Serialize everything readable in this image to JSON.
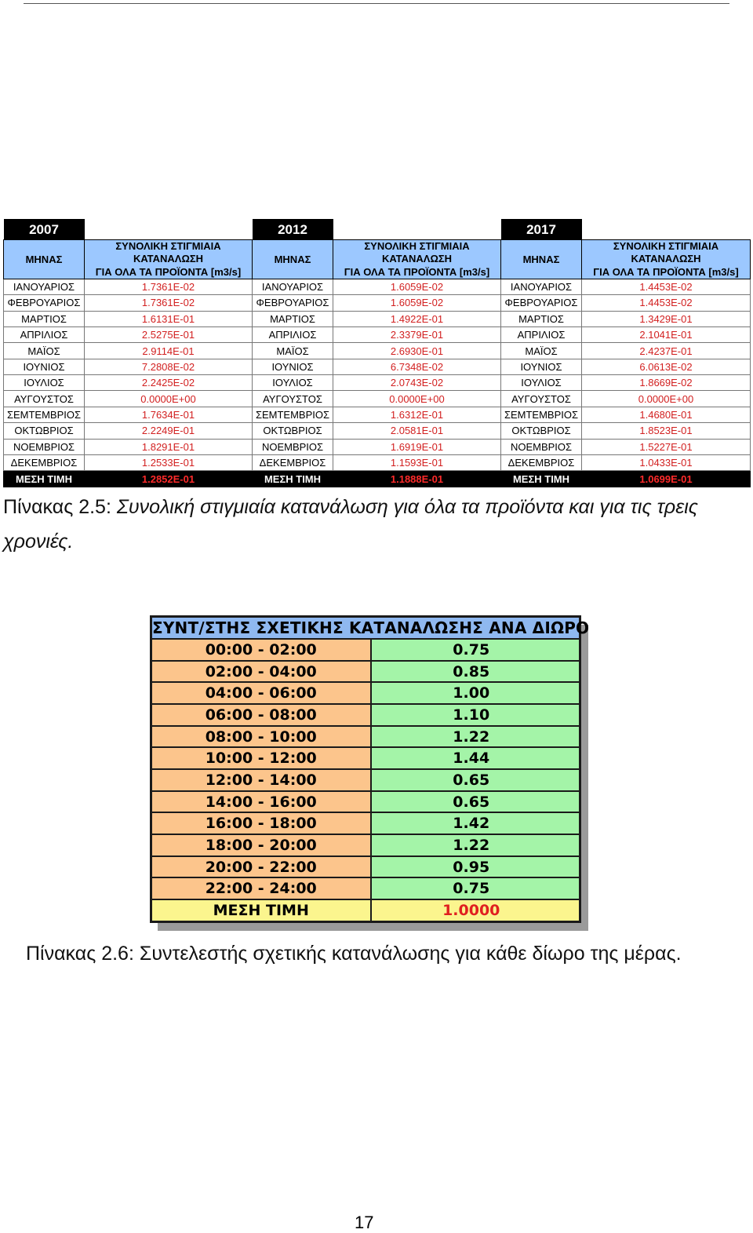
{
  "table25": {
    "years": [
      "2007",
      "2012",
      "2017"
    ],
    "month_header": "ΜΗΝΑΣ",
    "value_header_line1": "ΣΥΝΟΛΙΚΗ ΣΤΙΓΜΙΑΙΑ ΚΑΤΑΝΑΛΩΣΗ",
    "value_header_line2": "ΓΙΑ ΟΛΑ ΤΑ ΠΡΟΪΟΝΤΑ [m3/s]",
    "rows": [
      {
        "month": "ΙΑΝΟΥΑΡΙΟΣ",
        "v2007": "1.7361E-02",
        "v2012": "1.6059E-02",
        "v2017": "1.4453E-02"
      },
      {
        "month": "ΦΕΒΡΟΥΑΡΙΟΣ",
        "v2007": "1.7361E-02",
        "v2012": "1.6059E-02",
        "v2017": "1.4453E-02"
      },
      {
        "month": "ΜΑΡΤΙΟΣ",
        "v2007": "1.6131E-01",
        "v2012": "1.4922E-01",
        "v2017": "1.3429E-01"
      },
      {
        "month": "ΑΠΡΙΛΙΟΣ",
        "v2007": "2.5275E-01",
        "v2012": "2.3379E-01",
        "v2017": "2.1041E-01"
      },
      {
        "month": "ΜΑΪΟΣ",
        "v2007": "2.9114E-01",
        "v2012": "2.6930E-01",
        "v2017": "2.4237E-01"
      },
      {
        "month": "ΙΟΥΝΙΟΣ",
        "v2007": "7.2808E-02",
        "v2012": "6.7348E-02",
        "v2017": "6.0613E-02"
      },
      {
        "month": "ΙΟΥΛΙΟΣ",
        "v2007": "2.2425E-02",
        "v2012": "2.0743E-02",
        "v2017": "1.8669E-02"
      },
      {
        "month": "ΑΥΓΟΥΣΤΟΣ",
        "v2007": "0.0000E+00",
        "v2012": "0.0000E+00",
        "v2017": "0.0000E+00"
      },
      {
        "month": "ΣΕΜΤΕΜΒΡΙΟΣ",
        "v2007": "1.7634E-01",
        "v2012": "1.6312E-01",
        "v2017": "1.4680E-01"
      },
      {
        "month": "ΟΚΤΩΒΡΙΟΣ",
        "v2007": "2.2249E-01",
        "v2012": "2.0581E-01",
        "v2017": "1.8523E-01"
      },
      {
        "month": "ΝΟΕΜΒΡΙΟΣ",
        "v2007": "1.8291E-01",
        "v2012": "1.6919E-01",
        "v2017": "1.5227E-01"
      },
      {
        "month": "ΔΕΚΕΜΒΡΙΟΣ",
        "v2007": "1.2533E-01",
        "v2012": "1.1593E-01",
        "v2017": "1.0433E-01"
      }
    ],
    "mean_label": "ΜΕΣΗ ΤΙΜΗ",
    "mean": {
      "v2007": "1.2852E-01",
      "v2012": "1.1888E-01",
      "v2017": "1.0699E-01"
    }
  },
  "caption25": {
    "prefix": "Πίνακας 2.5: ",
    "body": "Συνολική στιγμιαία κατανάλωση για όλα τα προϊόντα και για τις τρεις χρονιές."
  },
  "table26": {
    "title": "ΣΥΝΤ/ΣΤΗΣ ΣΧΕΤΙΚΗΣ ΚΑΤΑΝΑΛΩΣΗΣ ΑΝΑ ΔΙΩΡΟ",
    "rows": [
      {
        "period": "00:00 - 02:00",
        "coef": "0.75"
      },
      {
        "period": "02:00 - 04:00",
        "coef": "0.85"
      },
      {
        "period": "04:00 - 06:00",
        "coef": "1.00"
      },
      {
        "period": "06:00 - 08:00",
        "coef": "1.10"
      },
      {
        "period": "08:00 - 10:00",
        "coef": "1.22"
      },
      {
        "period": "10:00 - 12:00",
        "coef": "1.44"
      },
      {
        "period": "12:00 - 14:00",
        "coef": "0.65"
      },
      {
        "period": "14:00 - 16:00",
        "coef": "0.65"
      },
      {
        "period": "16:00 - 18:00",
        "coef": "1.42"
      },
      {
        "period": "18:00 - 20:00",
        "coef": "1.22"
      },
      {
        "period": "20:00 - 22:00",
        "coef": "0.95"
      },
      {
        "period": "22:00 - 24:00",
        "coef": "0.75"
      }
    ],
    "mean_label": "ΜΕΣΗ ΤΙΜΗ",
    "mean_value": "1.0000"
  },
  "caption26": {
    "prefix": "Πίνακας 2.6",
    "body": ": Συντελεστής σχετικής κατανάλωσης για κάθε δίωρο της μέρας."
  },
  "page_number": "17"
}
